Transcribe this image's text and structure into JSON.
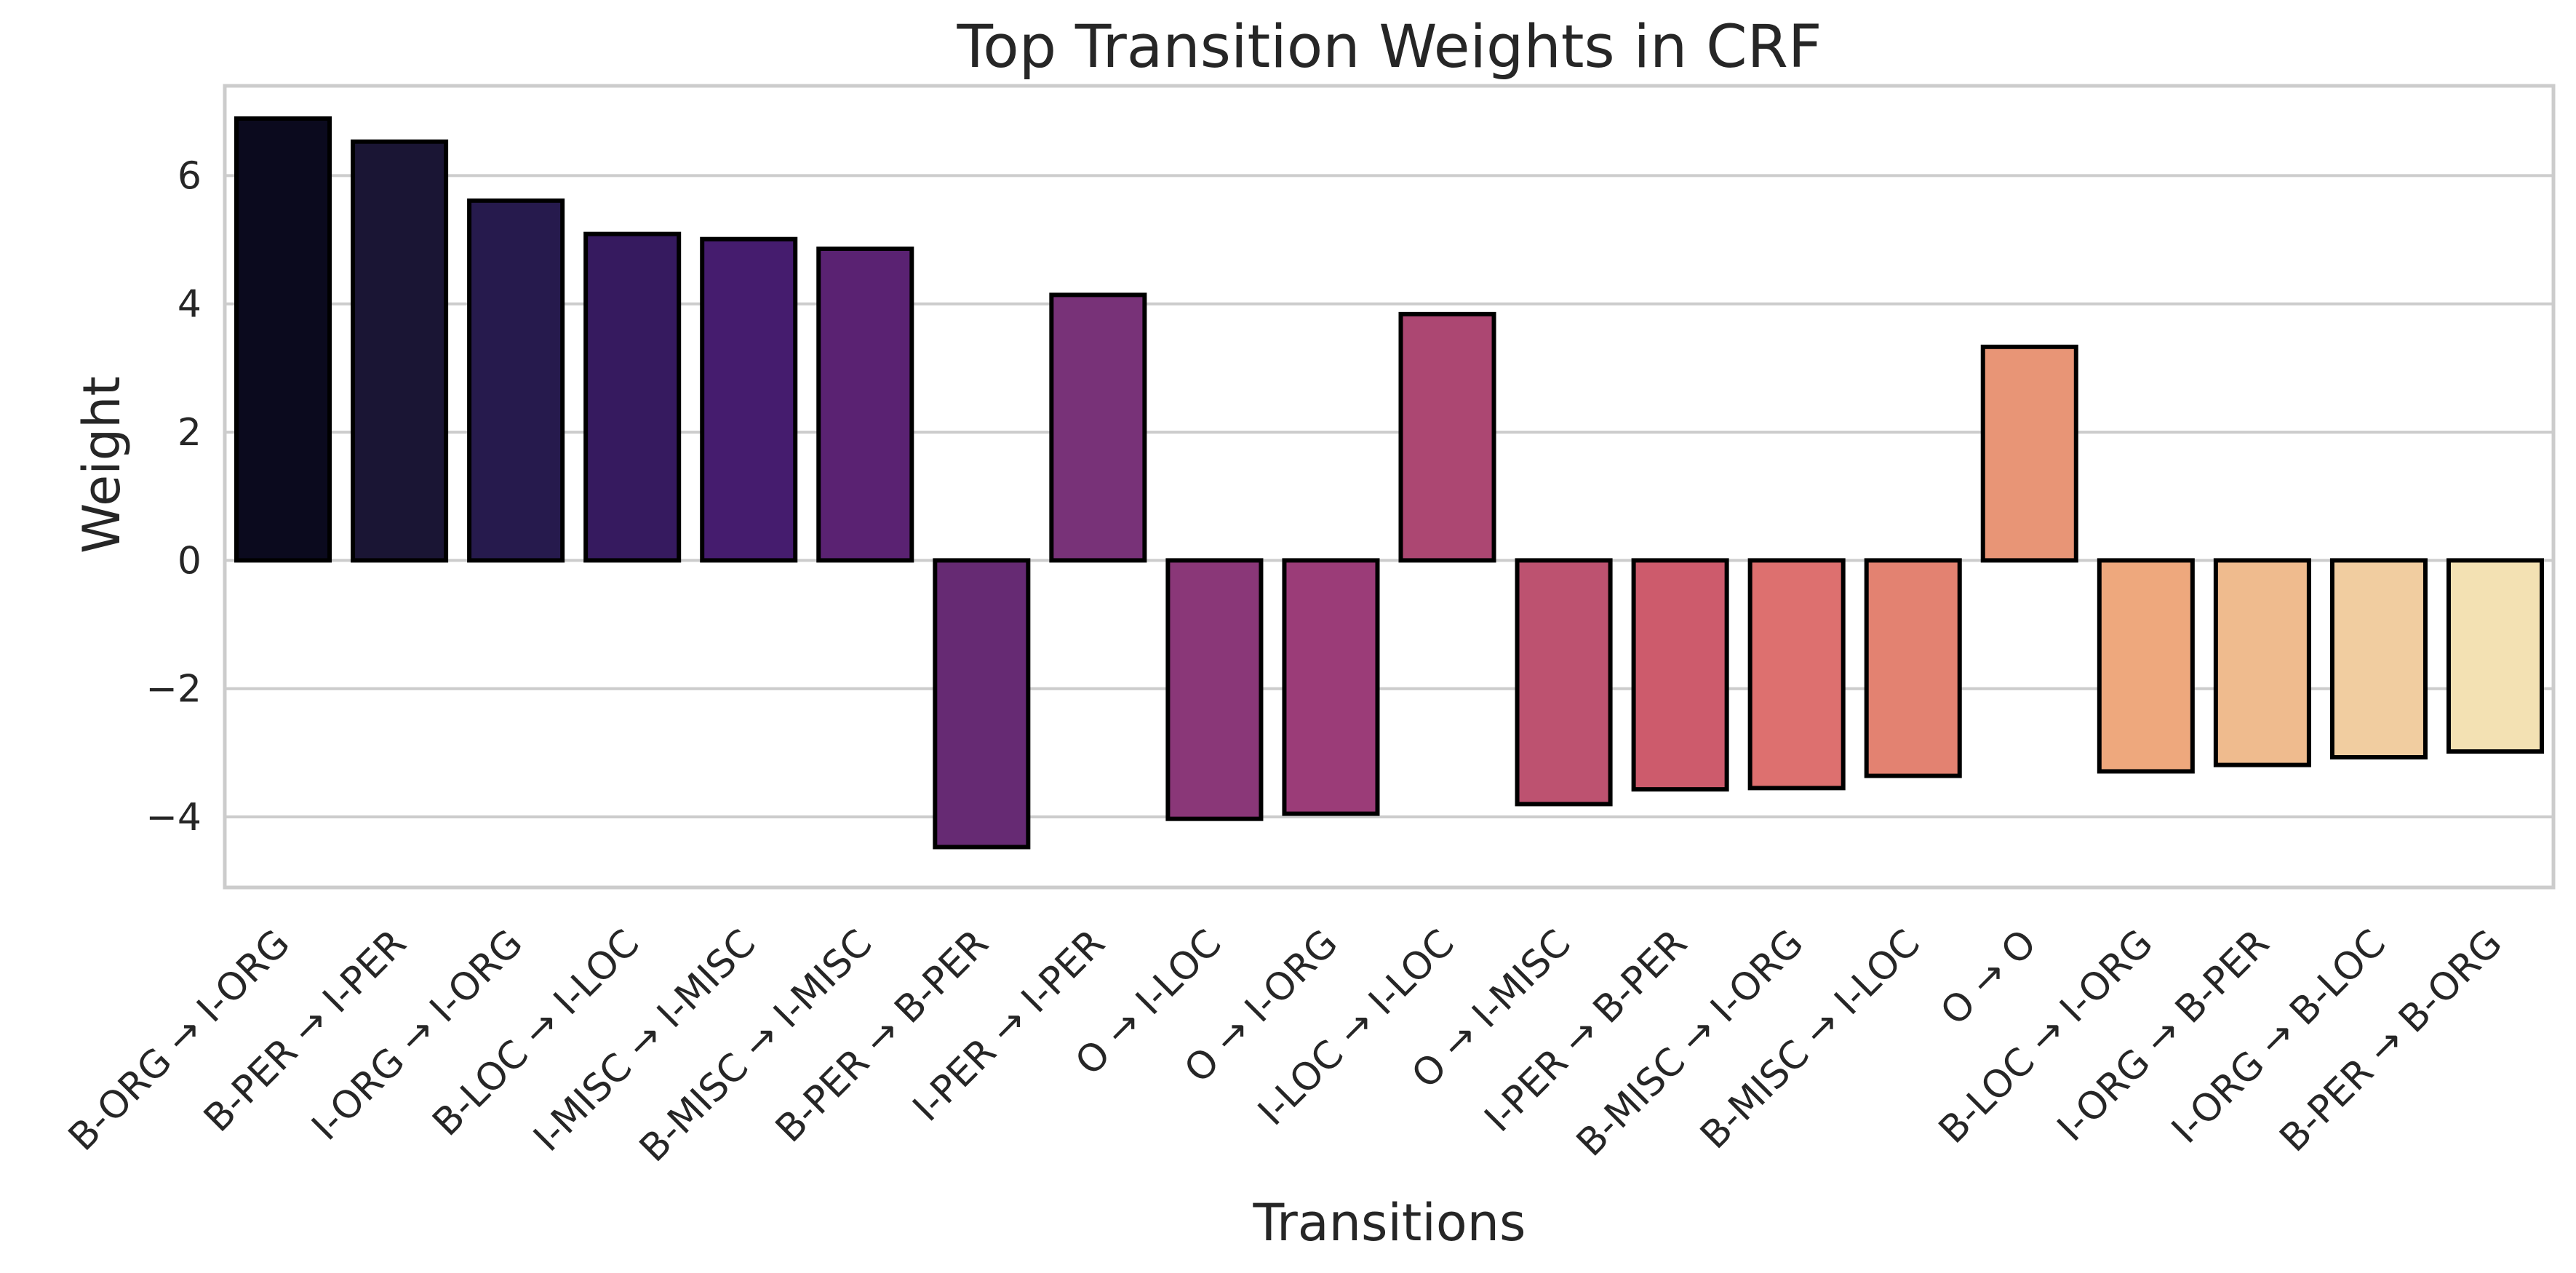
{
  "chart_data": {
    "type": "bar",
    "title": "Top Transition Weights in CRF",
    "xlabel": "Transitions",
    "ylabel": "Weight",
    "ylim": [
      -5.1,
      7.4
    ],
    "yticks": [
      -4,
      -2,
      0,
      2,
      4,
      6
    ],
    "ytick_labels": [
      "−4",
      "−2",
      "0",
      "2",
      "4",
      "6"
    ],
    "grid": "horizontal",
    "palette": "magma",
    "categories": [
      "B-ORG → I-ORG",
      "B-PER → I-PER",
      "I-ORG → I-ORG",
      "B-LOC → I-LOC",
      "I-MISC → I-MISC",
      "B-MISC → I-MISC",
      "B-PER → B-PER",
      "I-PER → I-PER",
      "O → I-LOC",
      "O → I-ORG",
      "I-LOC → I-LOC",
      "O → I-MISC",
      "I-PER → B-PER",
      "B-MISC → I-ORG",
      "B-MISC → I-LOC",
      "O → O",
      "B-LOC → I-ORG",
      "I-ORG → B-PER",
      "I-ORG → B-LOC",
      "B-PER → B-ORG"
    ],
    "values": [
      6.89,
      6.53,
      5.61,
      5.09,
      5.01,
      4.86,
      -4.47,
      4.14,
      -4.03,
      -3.95,
      3.84,
      -3.8,
      -3.57,
      -3.55,
      -3.36,
      3.33,
      -3.29,
      -3.19,
      -3.07,
      -2.98
    ],
    "colors": [
      "#0b0a1e",
      "#1a1534",
      "#261a4d",
      "#361a5f",
      "#451c6e",
      "#5a2272",
      "#662a73",
      "#783278",
      "#8a3778",
      "#9b3c78",
      "#ac4772",
      "#bd5270",
      "#cd5b6c",
      "#dd706f",
      "#e38271",
      "#e89576",
      "#eea87d",
      "#efbb8e",
      "#f1cda0",
      "#f3e1b3"
    ]
  }
}
